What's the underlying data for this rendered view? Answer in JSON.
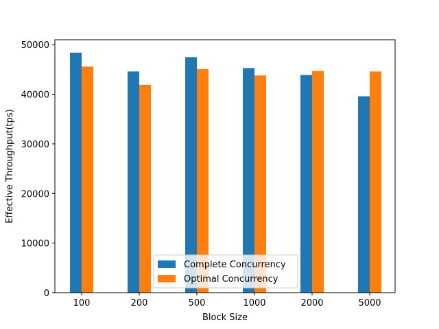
{
  "chart_data": {
    "type": "bar",
    "title": "",
    "xlabel": "Block Size",
    "ylabel": "Effective Throughput(tps)",
    "categories": [
      "100",
      "200",
      "500",
      "1000",
      "2000",
      "5000"
    ],
    "ylim": [
      0,
      51000
    ],
    "yticks": [
      0,
      10000,
      20000,
      30000,
      40000,
      50000
    ],
    "grid": false,
    "legend_position": "lower-center",
    "series": [
      {
        "name": "Complete Concurrency",
        "color": "#1f77b4",
        "values": [
          48400,
          44600,
          47500,
          45300,
          43900,
          39600
        ]
      },
      {
        "name": "Optimal Concurrency",
        "color": "#ff7f0e",
        "values": [
          45600,
          41900,
          45100,
          43800,
          44700,
          44600
        ]
      }
    ]
  }
}
